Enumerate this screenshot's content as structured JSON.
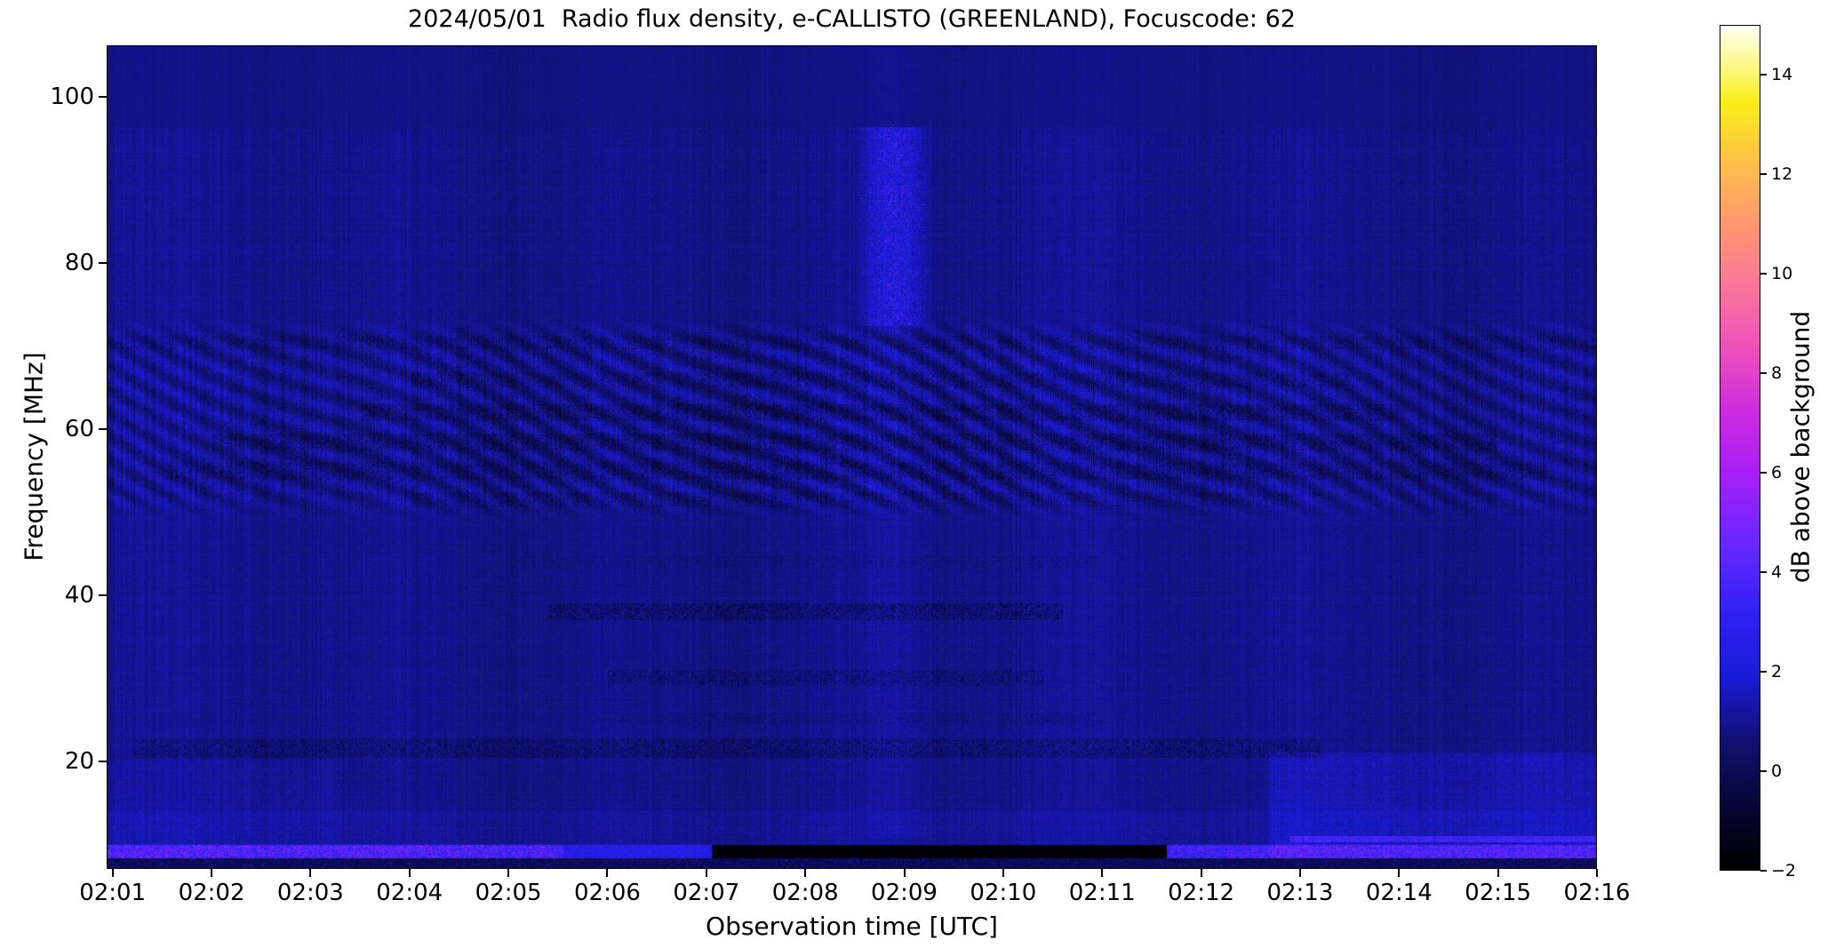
{
  "chart_data": {
    "type": "heatmap",
    "title": "2024/05/01  Radio flux density, e-CALLISTO (GREENLAND), Focuscode: 62",
    "xlabel": "Observation time [UTC]",
    "ylabel": "Frequency [MHz]",
    "date": "2024/05/01",
    "station": "GREENLAND",
    "focuscode": "62",
    "x_ticks": [
      {
        "t": 1,
        "label": "02:01"
      },
      {
        "t": 2,
        "label": "02:02"
      },
      {
        "t": 3,
        "label": "02:03"
      },
      {
        "t": 4,
        "label": "02:04"
      },
      {
        "t": 5,
        "label": "02:05"
      },
      {
        "t": 6,
        "label": "02:06"
      },
      {
        "t": 7,
        "label": "02:07"
      },
      {
        "t": 8,
        "label": "02:08"
      },
      {
        "t": 9,
        "label": "02:09"
      },
      {
        "t": 10,
        "label": "02:10"
      },
      {
        "t": 11,
        "label": "02:11"
      },
      {
        "t": 12,
        "label": "02:12"
      },
      {
        "t": 13,
        "label": "02:13"
      },
      {
        "t": 14,
        "label": "02:14"
      },
      {
        "t": 15,
        "label": "02:15"
      },
      {
        "t": 16,
        "label": "02:16"
      }
    ],
    "x_range_minutes_after_0200": [
      0.94,
      16.0
    ],
    "y_ticks": [
      100,
      80,
      60,
      40,
      20
    ],
    "y_range_mhz": [
      7.0,
      106.2
    ],
    "grid": false,
    "colorbar": {
      "label": "dB above background",
      "range_db": [
        -2,
        15
      ],
      "ticks": [
        14,
        12,
        10,
        8,
        6,
        4,
        2,
        0,
        -2
      ],
      "tick_labels": [
        "14",
        "12",
        "10",
        "8",
        "6",
        "4",
        "2",
        "0",
        "−2"
      ],
      "gradient": [
        [
          0.0,
          "#fffff2"
        ],
        [
          0.04,
          "#fdfa9a"
        ],
        [
          0.09,
          "#f9ee18"
        ],
        [
          0.175,
          "#ffb852"
        ],
        [
          0.24,
          "#ff9472"
        ],
        [
          0.3,
          "#fb7b95"
        ],
        [
          0.38,
          "#ee51ba"
        ],
        [
          0.46,
          "#cc2ae0"
        ],
        [
          0.53,
          "#a81ef8"
        ],
        [
          0.62,
          "#6328ff"
        ],
        [
          0.7,
          "#2d20f2"
        ],
        [
          0.77,
          "#1b1bd8"
        ],
        [
          0.85,
          "#10106e"
        ],
        [
          0.925,
          "#060634"
        ],
        [
          1.0,
          "#000000"
        ]
      ]
    },
    "features": {
      "background_db": 0.9,
      "noise_seed": 42,
      "structured_band": {
        "freq_mhz": [
          49,
          73.5
        ],
        "time_min": [
          0.94,
          16.0
        ],
        "stronger_time_min": [
          5,
          12
        ]
      },
      "burst_column": {
        "time_min": [
          8.52,
          9.28
        ],
        "strong_freq_mhz": [
          72.5,
          96.5
        ],
        "faint_freq_mhz": [
          10.5,
          72.5
        ],
        "peak_db": 4,
        "rare_db": 7
      },
      "dark_rows": [
        {
          "f": 70.5,
          "w": 0.8,
          "t": [
            0.94,
            16.0
          ],
          "amp": -0.55,
          "p": 0.45
        },
        {
          "f": 66.0,
          "w": 0.9,
          "t": [
            4.0,
            13.5
          ],
          "amp": -0.7,
          "p": 0.4
        },
        {
          "f": 62.0,
          "w": 1.0,
          "t": [
            3.5,
            14.0
          ],
          "amp": -0.85,
          "p": 0.5
        },
        {
          "f": 58.5,
          "w": 1.0,
          "t": [
            2.0,
            15.0
          ],
          "amp": -0.8,
          "p": 0.5
        },
        {
          "f": 55.0,
          "w": 1.1,
          "t": [
            1.5,
            15.5
          ],
          "amp": -0.75,
          "p": 0.45
        },
        {
          "f": 51.5,
          "w": 0.9,
          "t": [
            4.0,
            13.0
          ],
          "amp": -0.6,
          "p": 0.35
        },
        {
          "f": 44.0,
          "w": 0.8,
          "t": [
            5.0,
            11.0
          ],
          "amp": -0.5,
          "p": 0.25
        },
        {
          "f": 38.0,
          "w": 1.0,
          "t": [
            5.4,
            10.6
          ],
          "amp": -1.2,
          "p": 0.4
        },
        {
          "f": 30.0,
          "w": 1.0,
          "t": [
            6.0,
            10.4
          ],
          "amp": -1.0,
          "p": 0.3
        },
        {
          "f": 25.0,
          "w": 0.8,
          "t": [
            6.0,
            11.0
          ],
          "amp": -0.5,
          "p": 0.2
        },
        {
          "f": 21.5,
          "w": 1.1,
          "t": [
            1.2,
            13.2
          ],
          "amp": -0.95,
          "p": 0.42
        }
      ],
      "bottom_stripe": {
        "freq_mhz": [
          8.2,
          9.8
        ],
        "bright_until_min": 5.55,
        "medium_until_min": 7.05,
        "black_until_min": 11.65,
        "bright_db": 3.2,
        "black_db": -1.7
      },
      "upper_stripe_line": {
        "freq_mhz": [
          10.2,
          10.9
        ],
        "time_min": [
          12.9,
          16.0
        ],
        "db": 2.2
      },
      "below_stripe_freq_mhz": 8.2,
      "bright_corner_left": {
        "time_min": [
          0.94,
          3.3
        ],
        "freq_mhz": [
          9.8,
          20
        ],
        "db": 0.35
      },
      "bright_corner_right": {
        "time_min": [
          12.7,
          16.0
        ],
        "freq_mhz": [
          8.2,
          21
        ],
        "db": 0.55
      }
    }
  }
}
